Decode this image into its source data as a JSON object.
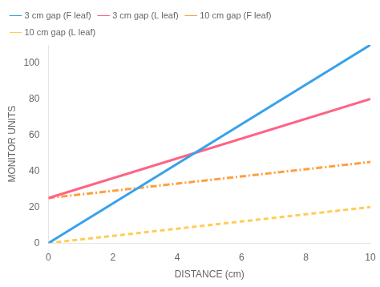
{
  "chart_data": {
    "type": "line",
    "xlabel": "DISTANCE (cm)",
    "ylabel": "MONITOR UNITS",
    "x": [
      0,
      10
    ],
    "series": [
      {
        "name": "3 cm gap (F leaf)",
        "values": [
          0,
          110
        ],
        "line_style": "solid"
      },
      {
        "name": "3 cm gap (L leaf)",
        "values": [
          25,
          80
        ],
        "line_style": "solid"
      },
      {
        "name": "10 cm gap (F leaf)",
        "values": [
          25,
          45
        ],
        "line_style": "dashdot"
      },
      {
        "name": "10 cm gap (L leaf)",
        "values": [
          0,
          20
        ],
        "line_style": "dashed"
      }
    ],
    "xlim": [
      0,
      10
    ],
    "ylim": [
      0,
      110
    ],
    "xticks": [
      0,
      2,
      4,
      6,
      8,
      10
    ],
    "yticks": [
      0,
      20,
      40,
      60,
      80,
      100
    ],
    "grid": false,
    "legend": "upper left"
  }
}
